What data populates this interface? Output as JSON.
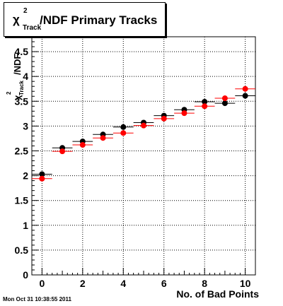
{
  "title": {
    "chi": "χ",
    "sup": "2",
    "sub": "Track",
    "main": "/NDF Primary Tracks"
  },
  "timestamp": "Mon Oct 31 10:38:55 2011",
  "chart_data": {
    "type": "scatter",
    "xlabel": "No. of Bad Points",
    "ylabel": "/NDF",
    "xlim": [
      -0.5,
      10.5
    ],
    "ylim": [
      0,
      4.8
    ],
    "xticks": [
      "0",
      "2",
      "4",
      "6",
      "8",
      "10"
    ],
    "yticks": [
      "0",
      "0.5",
      "1",
      "1.5",
      "2",
      "2.5",
      "3",
      "3.5",
      "4",
      "4.5"
    ],
    "grid": true,
    "x_error_half_width": 0.5,
    "series": [
      {
        "color": "#000000",
        "x": [
          0,
          1,
          2,
          3,
          4,
          5,
          6,
          7,
          8,
          9,
          10
        ],
        "y": [
          2.03,
          2.56,
          2.69,
          2.83,
          2.98,
          3.07,
          3.21,
          3.33,
          3.49,
          3.46,
          3.61
        ]
      },
      {
        "color": "#ff0000",
        "x": [
          0,
          1,
          2,
          3,
          4,
          5,
          6,
          7,
          8,
          9,
          10
        ],
        "y": [
          1.94,
          2.49,
          2.62,
          2.76,
          2.86,
          3.01,
          3.15,
          3.26,
          3.4,
          3.56,
          3.75
        ]
      }
    ]
  }
}
